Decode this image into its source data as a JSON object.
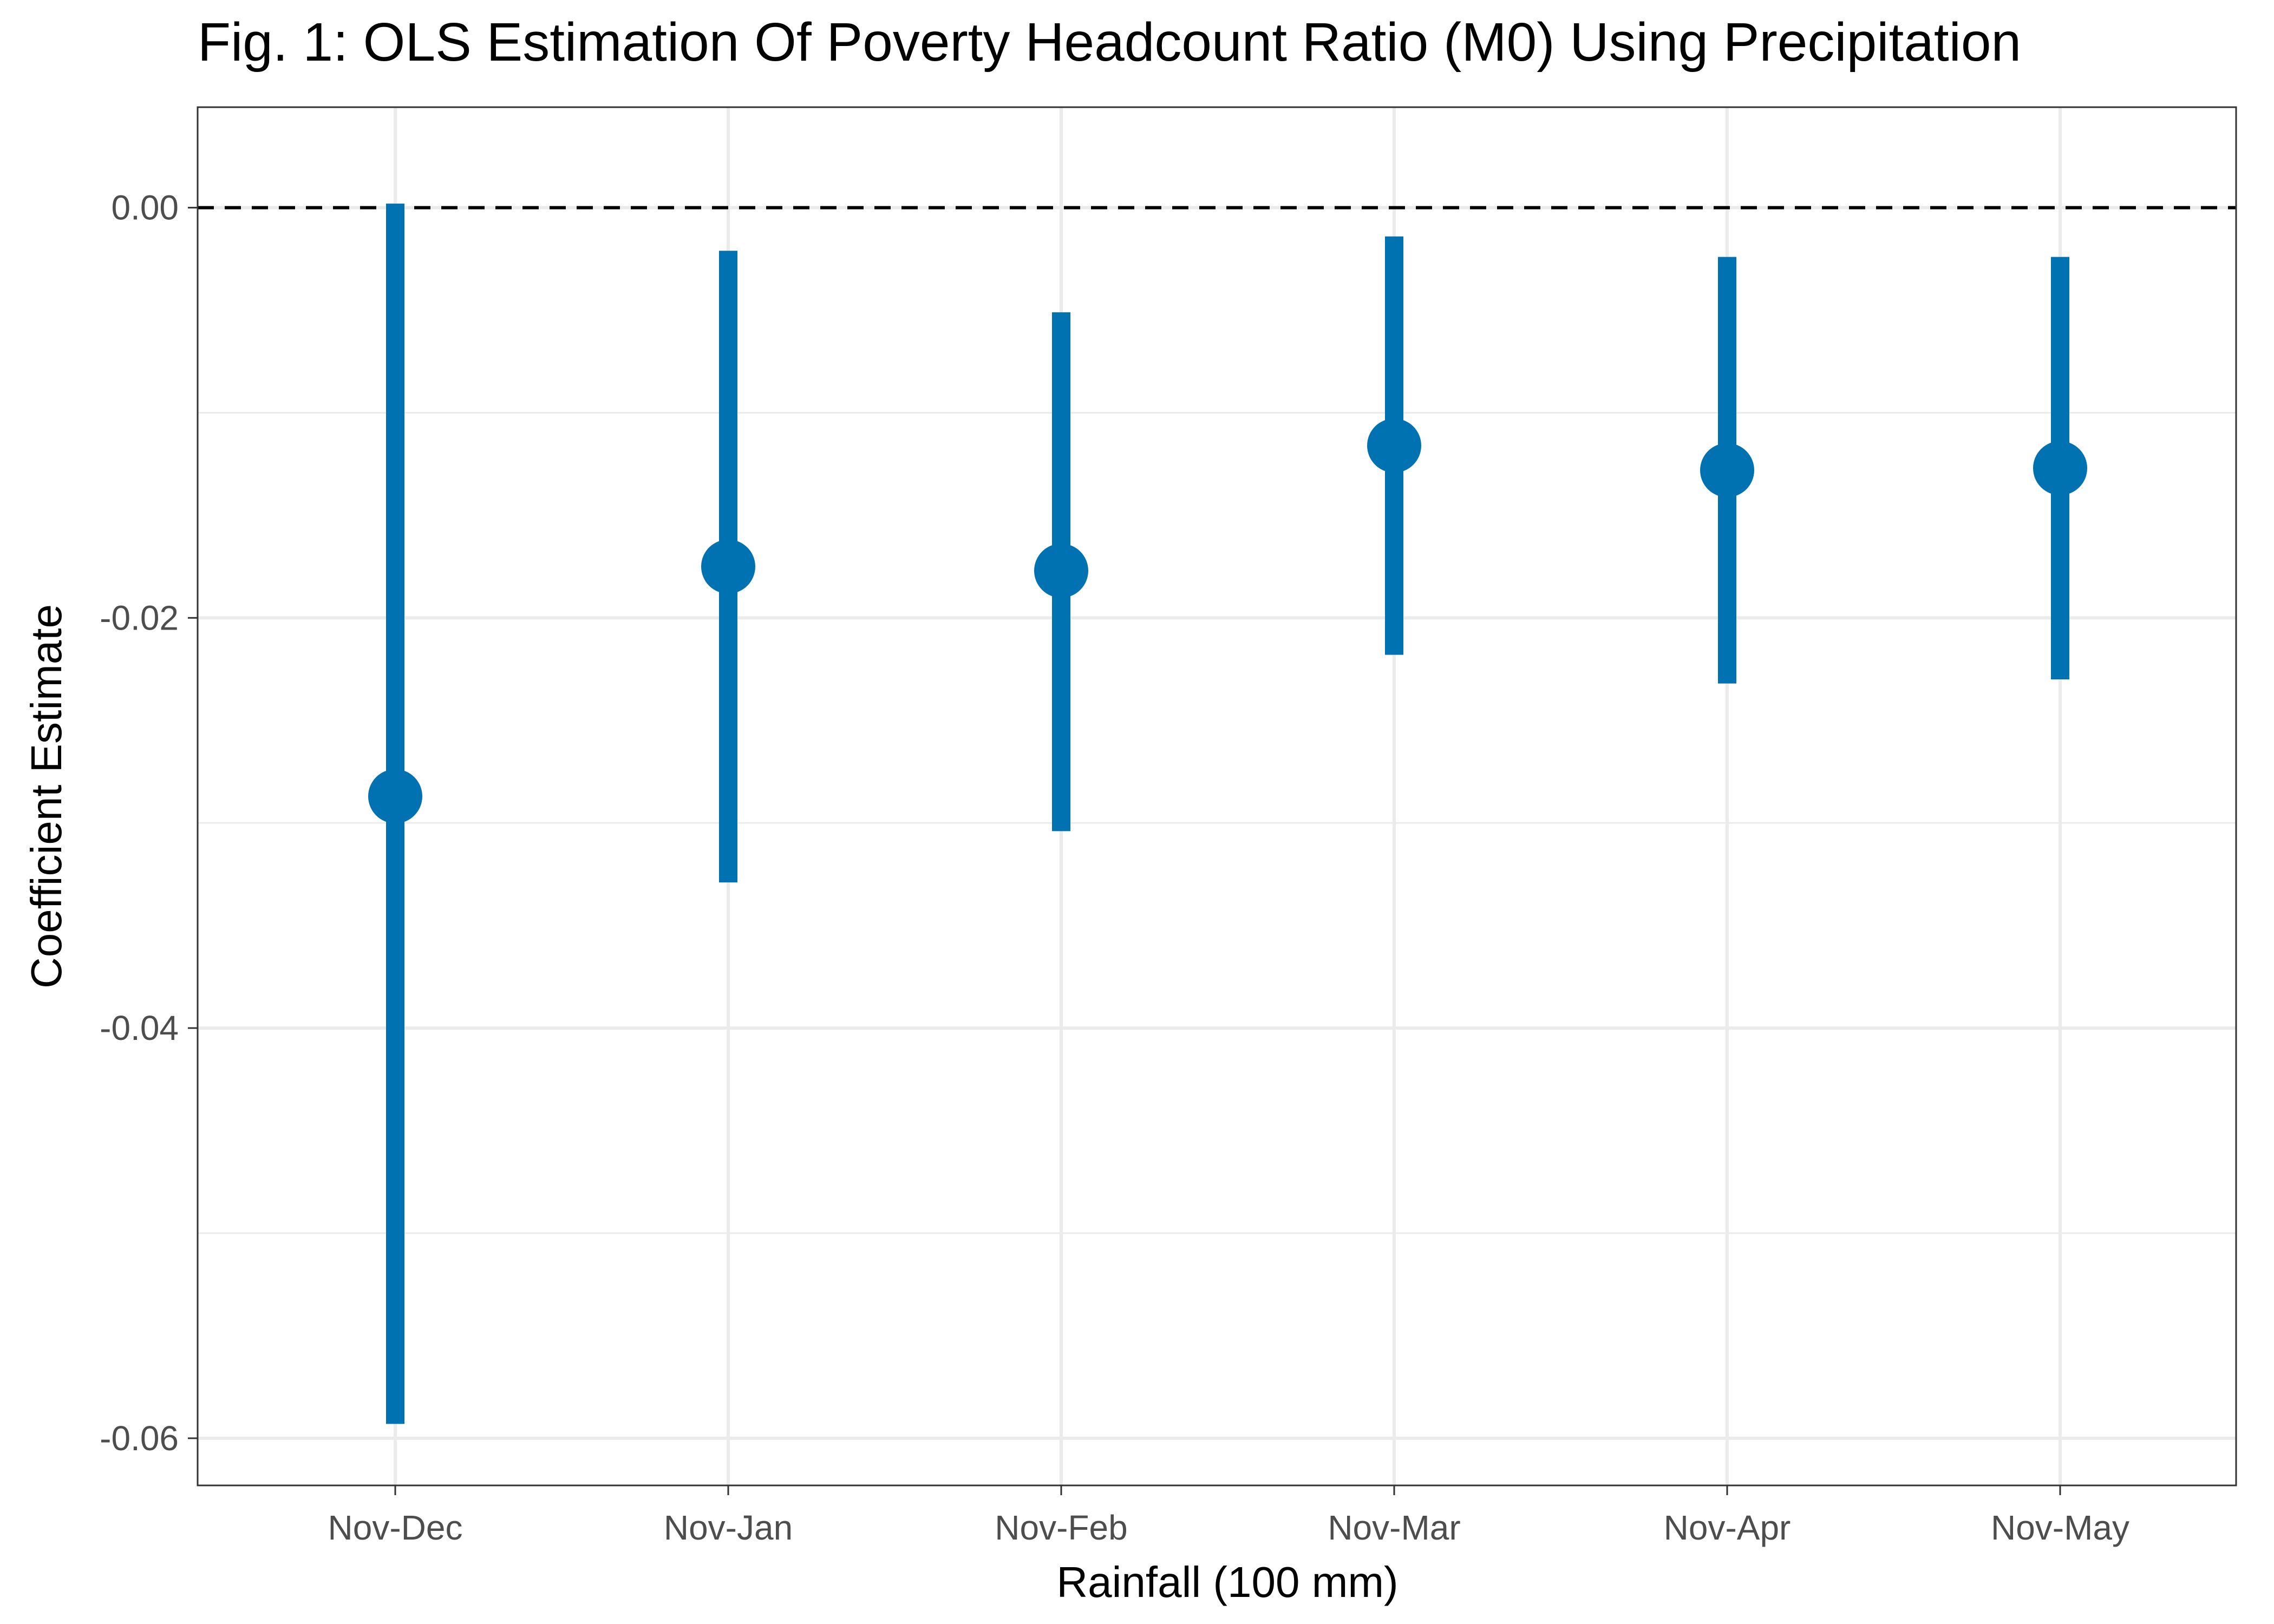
{
  "chart_data": {
    "type": "scatter",
    "subtype": "point-range (coefficient plot with confidence intervals)",
    "title": "Fig. 1: OLS Estimation Of Poverty Headcount Ratio (M0) Using Precipitation",
    "xlabel": "Rainfall (100 mm)",
    "ylabel": "Coefficient Estimate",
    "categories": [
      "Nov-Dec",
      "Nov-Jan",
      "Nov-Feb",
      "Nov-Mar",
      "Nov-Apr",
      "Nov-May"
    ],
    "series": [
      {
        "estimates": [
          -0.0287,
          -0.0175,
          -0.0177,
          -0.0116,
          -0.0128,
          -0.0127
        ],
        "ci_lower": [
          -0.0593,
          -0.0329,
          -0.0304,
          -0.0218,
          -0.0232,
          -0.023
        ],
        "ci_upper": [
          0.0002,
          -0.0021,
          -0.0051,
          -0.0014,
          -0.0024,
          -0.0024
        ],
        "color": "#0072B2"
      }
    ],
    "ylim": [
      -0.0623,
      0.0049
    ],
    "yticks": [
      0.0,
      -0.02,
      -0.04,
      -0.06
    ],
    "ytick_labels": [
      "0.00",
      "-0.02",
      "-0.04",
      "-0.06"
    ],
    "reference_line": {
      "y": 0,
      "style": "dashed",
      "color": "#000000"
    },
    "grid": true,
    "legend": "none",
    "theme": "bw"
  }
}
